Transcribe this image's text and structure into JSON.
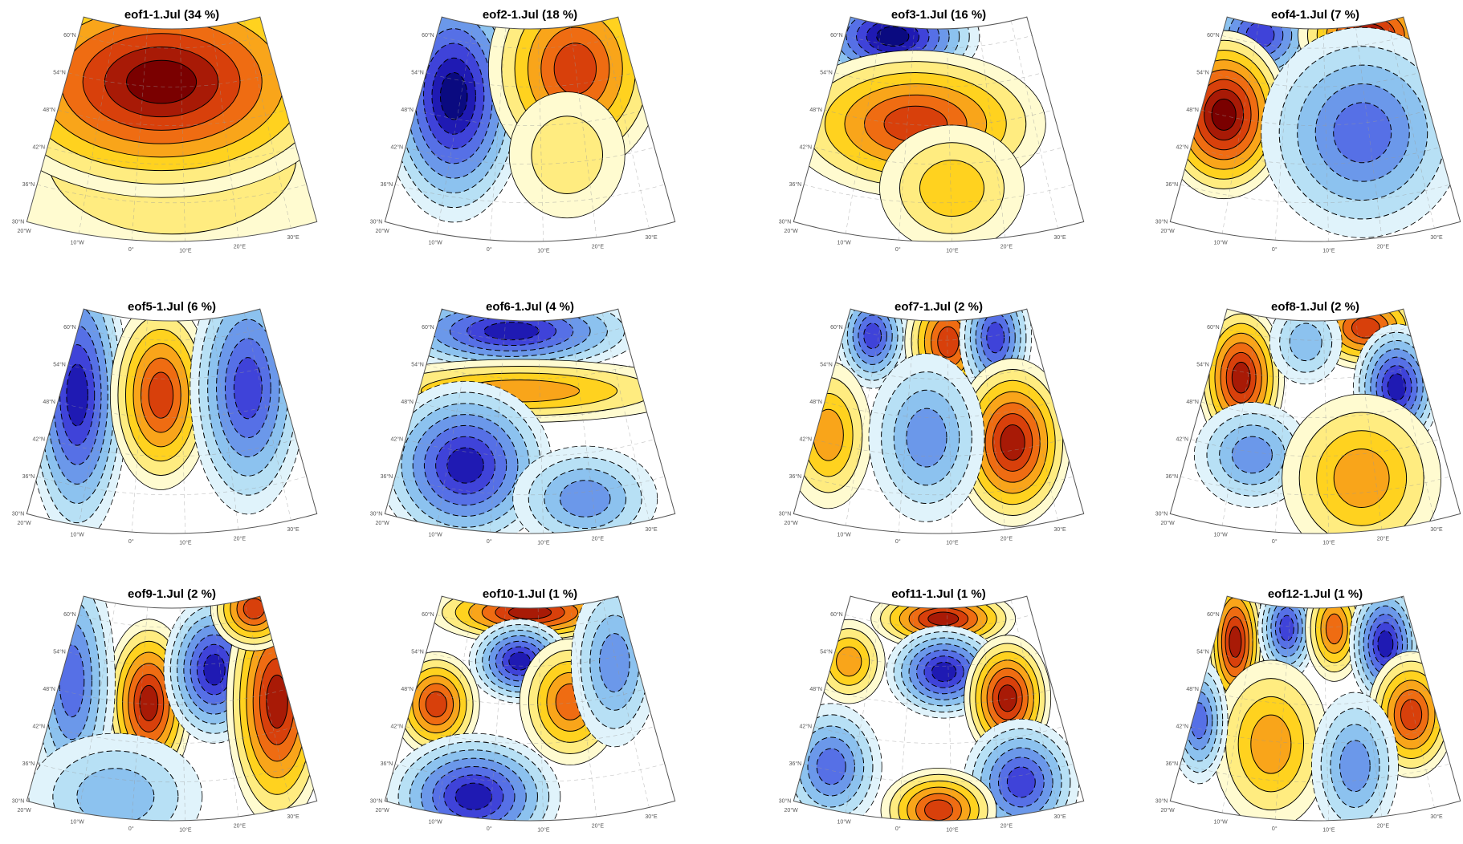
{
  "panels": [
    {
      "title": "eof1-1.Jul (34 %)"
    },
    {
      "title": "eof2-1.Jul (18 %)"
    },
    {
      "title": "eof3-1.Jul (16 %)"
    },
    {
      "title": "eof4-1.Jul (7 %)"
    },
    {
      "title": "eof5-1.Jul (6 %)"
    },
    {
      "title": "eof6-1.Jul (4 %)"
    },
    {
      "title": "eof7-1.Jul (2 %)"
    },
    {
      "title": "eof8-1.Jul (2 %)"
    },
    {
      "title": "eof9-1.Jul (2 %)"
    },
    {
      "title": "eof10-1.Jul (1 %)"
    },
    {
      "title": "eof11-1.Jul (1 %)"
    },
    {
      "title": "eof12-1.Jul (1 %)"
    }
  ],
  "lat_labels": [
    "60°N",
    "54°N",
    "48°N",
    "42°N",
    "36°N",
    "30°N"
  ],
  "lon_labels": [
    "20°W",
    "10°W",
    "0°",
    "10°E",
    "20°E",
    "30°E"
  ]
}
